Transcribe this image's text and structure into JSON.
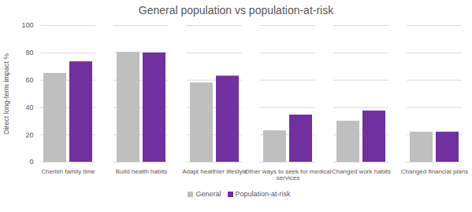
{
  "chart_data": {
    "type": "bar",
    "title": "General population vs population-at-risk",
    "y_label": "Direct long-term impact %",
    "categories": [
      "Cherish family time",
      "Build health habits",
      "Adapt healthier lifestyle",
      "Other ways to seek for medical services",
      "Changed work habits",
      "Changed financial plans"
    ],
    "series": [
      {
        "name": "General",
        "color": "#bfbfbf",
        "values": [
          65,
          80.5,
          58,
          23,
          30,
          22
        ]
      },
      {
        "name": "Population-at-risk",
        "color": "#7030a0",
        "values": [
          73.5,
          80,
          63,
          34.5,
          37.5,
          22
        ]
      }
    ],
    "ylim": [
      0,
      100
    ],
    "yticks": [
      0,
      20,
      40,
      60,
      80,
      100
    ],
    "grid": true,
    "legend": "bottom"
  }
}
